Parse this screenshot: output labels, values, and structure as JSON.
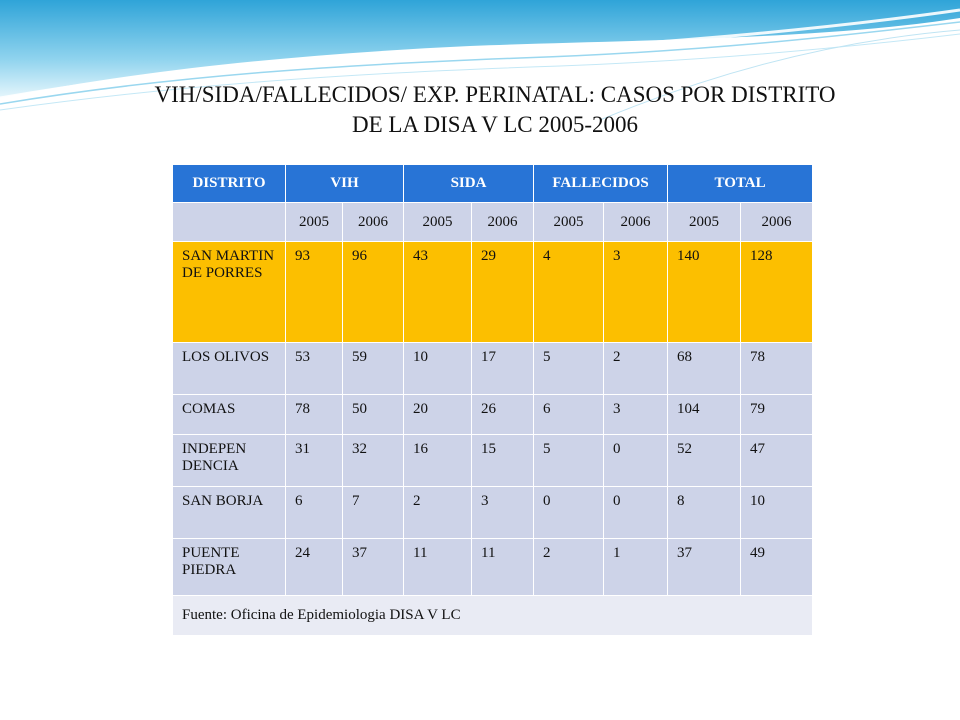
{
  "title": {
    "line1": "VIH/SIDA/FALLECIDOS/ EXP. PERINATAL: CASOS POR DISTRITO",
    "line2": "DE LA DISA V LC 2005-2006"
  },
  "table": {
    "headers": [
      "DISTRITO",
      "VIH",
      "SIDA",
      "FALLECIDOS",
      "TOTAL"
    ],
    "years": [
      "2005",
      "2006",
      "2005",
      "2006",
      "2005",
      "2006",
      "2005",
      "2006"
    ],
    "rows": [
      {
        "district": "SAN MARTIN DE PORRES",
        "values": [
          "93",
          "96",
          "43",
          "29",
          "4",
          "3",
          "140",
          "128"
        ],
        "highlight": true
      },
      {
        "district": "LOS OLIVOS",
        "values": [
          "53",
          "59",
          "10",
          "17",
          "5",
          "2",
          "68",
          "78"
        ]
      },
      {
        "district": "COMAS",
        "values": [
          "78",
          "50",
          "20",
          "26",
          "6",
          "3",
          "104",
          "79"
        ]
      },
      {
        "district": "INDEPEN DENCIA",
        "values": [
          "31",
          "32",
          "16",
          "15",
          "5",
          "0",
          "52",
          "47"
        ]
      },
      {
        "district": "SAN BORJA",
        "values": [
          "6",
          "7",
          "2",
          "3",
          "0",
          "0",
          "8",
          "10"
        ]
      },
      {
        "district": "PUENTE PIEDRA",
        "values": [
          "24",
          "37",
          "11",
          "11",
          "2",
          "1",
          "37",
          "49"
        ]
      }
    ],
    "source": "Fuente: Oficina de Epidemiologia DISA V LC"
  },
  "colors": {
    "header_bg": "#2874d6",
    "row_bg": "#cdd3e8",
    "highlight_bg": "#fcbf00",
    "swoosh": "#6cc3e3"
  }
}
